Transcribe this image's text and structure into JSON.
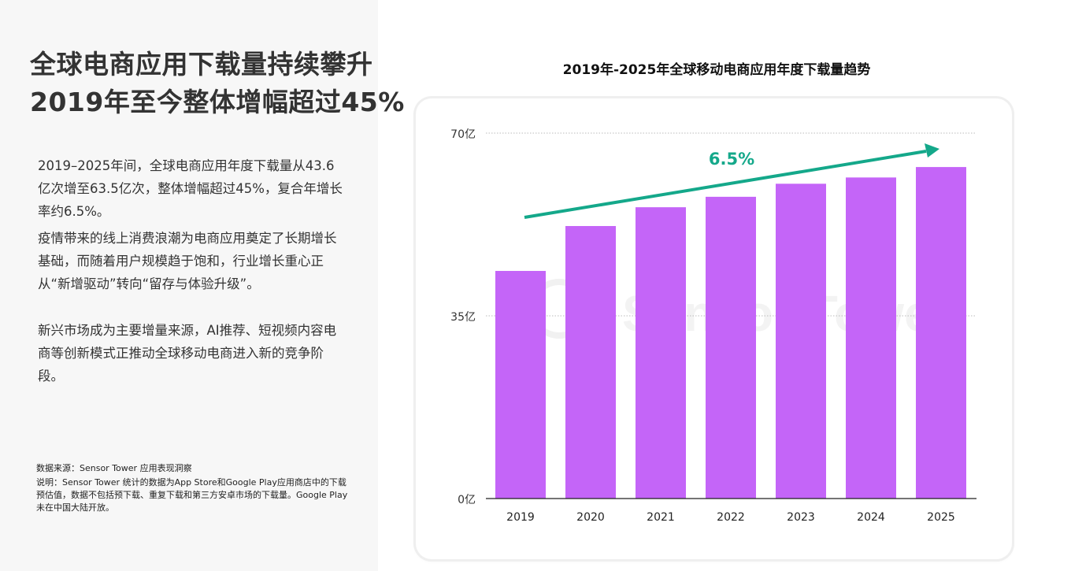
{
  "left": {
    "headline": [
      "全球电商应用下载量持续攀升",
      "2019年至今整体增幅超过45%"
    ],
    "paragraphs": [
      "2019–2025年间，全球电商应用年度下载量从43.6亿次增至63.5亿次，整体增幅超过45%，复合年增长率约6.5%。",
      "疫情带来的线上消费浪潮为电商应用奠定了长期增长基础，而随着用户规模趋于饱和，行业增长重心正从“新增驱动”转向“留存与体验升级”。",
      "新兴市场成为主要增量来源，AI推荐、短视频内容电商等创新模式正推动全球移动电商进入新的竞争阶段。"
    ],
    "source": "数据来源：Sensor Tower 应用表现洞察",
    "note": "说明：Sensor Tower 统计的数据为App Store和Google Play应用商店中的下载预估值，数据不包括预下载、重复下载和第三方安卓市场的下载量。Google Play未在中国大陆开放。"
  },
  "chart_data": {
    "type": "bar",
    "title": "2019年-2025年全球移动电商应用年度下载量趋势",
    "categories": [
      "2019",
      "2020",
      "2021",
      "2022",
      "2023",
      "2024",
      "2025"
    ],
    "values": [
      43.6,
      52.2,
      55.8,
      57.8,
      60.3,
      61.5,
      63.5
    ],
    "ylim": [
      0,
      70
    ],
    "yticks": [
      0,
      35,
      70
    ],
    "ytick_labels": [
      "0亿",
      "35亿",
      "70亿"
    ],
    "grid": true,
    "annotation": "6.5%",
    "watermark": "Sensor Tower",
    "colors": {
      "bar": "#c465f8",
      "arrow": "#14a88a",
      "grid": "#bbbbbb"
    }
  }
}
